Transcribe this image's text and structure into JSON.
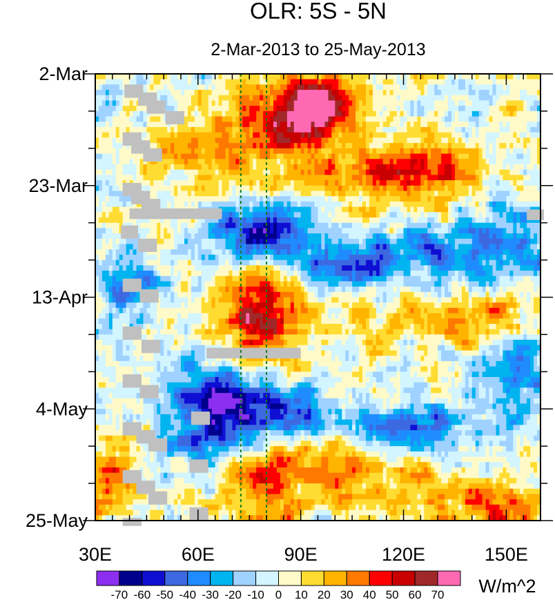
{
  "chart_data": {
    "type": "heatmap",
    "title": "OLR: 5S - 5N",
    "subtitle": "2-Mar-2013 to 25-May-2013",
    "x_range": [
      30,
      160
    ],
    "y_range_days": [
      0,
      84
    ],
    "x_ticks": [
      {
        "value": 30,
        "label": "30E"
      },
      {
        "value": 60,
        "label": "60E"
      },
      {
        "value": 90,
        "label": "90E"
      },
      {
        "value": 120,
        "label": "120E"
      },
      {
        "value": 150,
        "label": "150E"
      }
    ],
    "y_ticks": [
      {
        "day": 0,
        "label": "2-Mar"
      },
      {
        "day": 21,
        "label": "23-Mar"
      },
      {
        "day": 42,
        "label": "13-Apr"
      },
      {
        "day": 63,
        "label": "4-May"
      },
      {
        "day": 84,
        "label": "25-May"
      }
    ],
    "reference_lines_lon": [
      72.5,
      80
    ],
    "missing_color": "#c0c0c0",
    "colorbar": {
      "unit": "W/m^2",
      "levels": [
        "-70",
        "-60",
        "-50",
        "-40",
        "-30",
        "-20",
        "-10",
        "0",
        "10",
        "20",
        "30",
        "40",
        "50",
        "60",
        "70"
      ],
      "colors": [
        "#8c2ff0",
        "#00008c",
        "#0f0fd4",
        "#3c69e1",
        "#1e8cff",
        "#00b4f0",
        "#a0d2ff",
        "#d2f5ff",
        "#fffac8",
        "#ffdc32",
        "#ffb400",
        "#ff7800",
        "#ff0000",
        "#c80000",
        "#a02828",
        "#ff69b4"
      ]
    },
    "anomaly_features": [
      {
        "lon": 95,
        "day": 6,
        "amp": 75,
        "slon": 7,
        "sday": 4
      },
      {
        "lon": 84,
        "day": 10,
        "amp": 45,
        "slon": 10,
        "sday": 6
      },
      {
        "lon": 125,
        "day": 18,
        "amp": 30,
        "slon": 12,
        "sday": 5
      },
      {
        "lon": 108,
        "day": 19,
        "amp": 25,
        "slon": 14,
        "sday": 4
      },
      {
        "lon": 60,
        "day": 14,
        "amp": 25,
        "slon": 9,
        "sday": 4
      },
      {
        "lon": 78,
        "day": 30,
        "amp": -60,
        "slon": 10,
        "sday": 4
      },
      {
        "lon": 102,
        "day": 37,
        "amp": -55,
        "slon": 10,
        "sday": 3
      },
      {
        "lon": 125,
        "day": 34,
        "amp": -35,
        "slon": 12,
        "sday": 4
      },
      {
        "lon": 150,
        "day": 32,
        "amp": -30,
        "slon": 9,
        "sday": 6
      },
      {
        "lon": 40,
        "day": 40,
        "amp": -35,
        "slon": 6,
        "sday": 4
      },
      {
        "lon": 80,
        "day": 42,
        "amp": 45,
        "slon": 9,
        "sday": 5
      },
      {
        "lon": 78,
        "day": 50,
        "amp": 35,
        "slon": 8,
        "sday": 4
      },
      {
        "lon": 115,
        "day": 44,
        "amp": 20,
        "slon": 14,
        "sday": 5
      },
      {
        "lon": 145,
        "day": 46,
        "amp": 25,
        "slon": 12,
        "sday": 4
      },
      {
        "lon": 78,
        "day": 63,
        "amp": -65,
        "slon": 12,
        "sday": 4
      },
      {
        "lon": 62,
        "day": 60,
        "amp": -45,
        "slon": 7,
        "sday": 4
      },
      {
        "lon": 120,
        "day": 67,
        "amp": -45,
        "slon": 14,
        "sday": 3
      },
      {
        "lon": 60,
        "day": 70,
        "amp": -40,
        "slon": 8,
        "sday": 3
      },
      {
        "lon": 153,
        "day": 57,
        "amp": -35,
        "slon": 8,
        "sday": 5
      },
      {
        "lon": 80,
        "day": 77,
        "amp": 40,
        "slon": 10,
        "sday": 5
      },
      {
        "lon": 100,
        "day": 72,
        "amp": 30,
        "slon": 8,
        "sday": 3
      },
      {
        "lon": 33,
        "day": 77,
        "amp": 35,
        "slon": 7,
        "sday": 6
      },
      {
        "lon": 150,
        "day": 82,
        "amp": 40,
        "slon": 9,
        "sday": 3
      },
      {
        "lon": 118,
        "day": 78,
        "amp": 25,
        "slon": 15,
        "sday": 5
      }
    ],
    "missing_cells": [
      {
        "lon": 38.5,
        "day": 2,
        "dlon": 5.5,
        "dday": 2.5
      },
      {
        "lon": 42.5,
        "day": 3.5,
        "dlon": 5.5,
        "dday": 2.5
      },
      {
        "lon": 45,
        "day": 5,
        "dlon": 5.5,
        "dday": 2.5
      },
      {
        "lon": 50.5,
        "day": 7,
        "dlon": 5.5,
        "dday": 2.5
      },
      {
        "lon": 38,
        "day": 11,
        "dlon": 5.5,
        "dday": 2.5
      },
      {
        "lon": 40.5,
        "day": 12.5,
        "dlon": 5.5,
        "dday": 2.5
      },
      {
        "lon": 44,
        "day": 14,
        "dlon": 5.5,
        "dday": 2.5
      },
      {
        "lon": 38,
        "day": 20.5,
        "dlon": 5.5,
        "dday": 2.5
      },
      {
        "lon": 40.5,
        "day": 22,
        "dlon": 5.5,
        "dday": 2.5
      },
      {
        "lon": 43.5,
        "day": 23.5,
        "dlon": 5.5,
        "dday": 2.5
      },
      {
        "lon": 40,
        "day": 25.3,
        "dlon": 27,
        "dday": 2.0
      },
      {
        "lon": 37.5,
        "day": 28.5,
        "dlon": 5,
        "dday": 2.5
      },
      {
        "lon": 42.5,
        "day": 31,
        "dlon": 5.5,
        "dday": 2.5
      },
      {
        "lon": 38,
        "day": 38.5,
        "dlon": 5.5,
        "dday": 2.5
      },
      {
        "lon": 43,
        "day": 40.5,
        "dlon": 5.5,
        "dday": 2.5
      },
      {
        "lon": 38,
        "day": 47.5,
        "dlon": 5.5,
        "dday": 2.5
      },
      {
        "lon": 43.5,
        "day": 50,
        "dlon": 5.5,
        "dday": 2.5
      },
      {
        "lon": 62.5,
        "day": 51.5,
        "dlon": 27.5,
        "dday": 2.0
      },
      {
        "lon": 38,
        "day": 56.5,
        "dlon": 5.5,
        "dday": 2.5
      },
      {
        "lon": 43,
        "day": 58.5,
        "dlon": 5.5,
        "dday": 2.5
      },
      {
        "lon": 58,
        "day": 63.5,
        "dlon": 5.5,
        "dday": 2.5
      },
      {
        "lon": 38,
        "day": 65.5,
        "dlon": 5.5,
        "dday": 2.5
      },
      {
        "lon": 42,
        "day": 67,
        "dlon": 5.5,
        "dday": 2.5
      },
      {
        "lon": 45.5,
        "day": 68.5,
        "dlon": 5.5,
        "dday": 2.5
      },
      {
        "lon": 57.5,
        "day": 72.5,
        "dlon": 5.5,
        "dday": 2.5
      },
      {
        "lon": 38,
        "day": 74.5,
        "dlon": 5.5,
        "dday": 2.5
      },
      {
        "lon": 42,
        "day": 76.5,
        "dlon": 5.5,
        "dday": 2.5
      },
      {
        "lon": 45.5,
        "day": 78.5,
        "dlon": 5.5,
        "dday": 2.5
      },
      {
        "lon": 57.5,
        "day": 81.5,
        "dlon": 5.5,
        "dday": 2.5
      },
      {
        "lon": 38,
        "day": 83.5,
        "dlon": 5.5,
        "dday": 1.5
      },
      {
        "lon": 156,
        "day": 25.5,
        "dlon": 5,
        "dday": 2.0
      }
    ]
  }
}
